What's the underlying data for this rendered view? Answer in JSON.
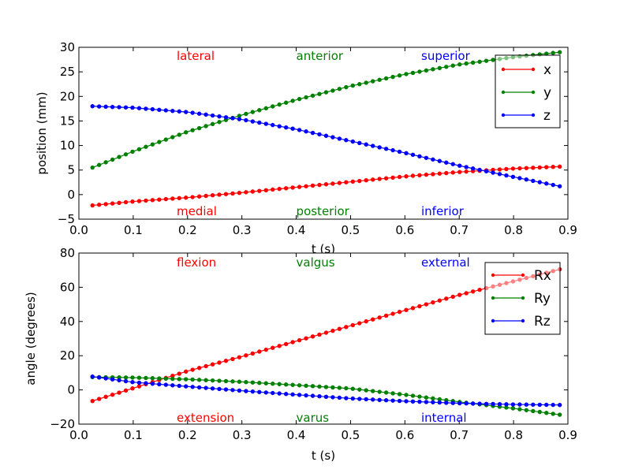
{
  "chart_data": [
    {
      "type": "line",
      "xlabel": "t (s)",
      "ylabel": "position (mm)",
      "xlim": [
        0.0,
        0.9
      ],
      "ylim": [
        -5,
        30
      ],
      "xticks": [
        "0.0",
        "0.1",
        "0.2",
        "0.3",
        "0.4",
        "0.5",
        "0.6",
        "0.7",
        "0.8",
        "0.9"
      ],
      "yticks": [
        "−5",
        "0",
        "5",
        "10",
        "15",
        "20",
        "25",
        "30"
      ],
      "grid": false,
      "legend": "top-right",
      "annotations_top": [
        {
          "text": "lateral",
          "color": "#ff0000",
          "t": 0.18
        },
        {
          "text": "anterior",
          "color": "#008000",
          "t": 0.4
        },
        {
          "text": "superior",
          "color": "#0000ff",
          "t": 0.63
        }
      ],
      "annotations_bottom": [
        {
          "text": "medial",
          "color": "#ff0000",
          "t": 0.18
        },
        {
          "text": "posterior",
          "color": "#008000",
          "t": 0.4
        },
        {
          "text": "inferior",
          "color": "#0000ff",
          "t": 0.63
        }
      ],
      "series": [
        {
          "name": "x",
          "color": "#ff0000",
          "x": [
            0.025,
            0.1,
            0.2,
            0.3,
            0.4,
            0.5,
            0.6,
            0.7,
            0.8,
            0.885
          ],
          "y": [
            -2.2,
            -1.4,
            -0.6,
            0.4,
            1.5,
            2.6,
            3.7,
            4.6,
            5.3,
            5.7
          ]
        },
        {
          "name": "y",
          "color": "#008000",
          "x": [
            0.025,
            0.1,
            0.2,
            0.3,
            0.4,
            0.5,
            0.6,
            0.7,
            0.8,
            0.885
          ],
          "y": [
            5.5,
            8.8,
            12.8,
            16.2,
            19.3,
            22.1,
            24.5,
            26.5,
            28.0,
            29.0
          ]
        },
        {
          "name": "z",
          "color": "#0000ff",
          "x": [
            0.025,
            0.1,
            0.2,
            0.3,
            0.4,
            0.5,
            0.6,
            0.7,
            0.8,
            0.885
          ],
          "y": [
            18.0,
            17.7,
            16.8,
            15.3,
            13.3,
            10.9,
            8.5,
            5.9,
            3.6,
            1.7
          ]
        }
      ]
    },
    {
      "type": "line",
      "xlabel": "t (s)",
      "ylabel": "angle (degrees)",
      "xlim": [
        0.0,
        0.9
      ],
      "ylim": [
        -20,
        80
      ],
      "xticks": [
        "0.0",
        "0.1",
        "0.2",
        "0.3",
        "0.4",
        "0.5",
        "0.6",
        "0.7",
        "0.8",
        "0.9"
      ],
      "yticks": [
        "−20",
        "0",
        "20",
        "40",
        "60",
        "80"
      ],
      "grid": false,
      "legend": "top-right",
      "annotations_top": [
        {
          "text": "flexion",
          "color": "#ff0000",
          "t": 0.18
        },
        {
          "text": "valgus",
          "color": "#008000",
          "t": 0.4
        },
        {
          "text": "external",
          "color": "#0000ff",
          "t": 0.63
        }
      ],
      "annotations_bottom": [
        {
          "text": "extension",
          "color": "#ff0000",
          "t": 0.18
        },
        {
          "text": "varus",
          "color": "#008000",
          "t": 0.4
        },
        {
          "text": "internal",
          "color": "#0000ff",
          "t": 0.63
        }
      ],
      "series": [
        {
          "name": "Rx",
          "color": "#ff0000",
          "x": [
            0.025,
            0.1,
            0.2,
            0.3,
            0.4,
            0.5,
            0.6,
            0.7,
            0.8,
            0.885
          ],
          "y": [
            -6.5,
            1.0,
            11.0,
            19.5,
            28.5,
            37.5,
            46.5,
            55.5,
            63.5,
            70.5
          ]
        },
        {
          "name": "Ry",
          "color": "#008000",
          "x": [
            0.025,
            0.1,
            0.2,
            0.3,
            0.4,
            0.5,
            0.6,
            0.7,
            0.8,
            0.885
          ],
          "y": [
            7.5,
            7.2,
            6.2,
            4.7,
            2.8,
            0.8,
            -2.8,
            -7.0,
            -10.8,
            -14.5
          ]
        },
        {
          "name": "Rz",
          "color": "#0000ff",
          "x": [
            0.025,
            0.1,
            0.2,
            0.3,
            0.4,
            0.5,
            0.6,
            0.7,
            0.8,
            0.885
          ],
          "y": [
            7.8,
            4.5,
            2.0,
            -0.5,
            -2.8,
            -5.0,
            -6.6,
            -7.8,
            -8.5,
            -8.8
          ]
        }
      ]
    }
  ]
}
